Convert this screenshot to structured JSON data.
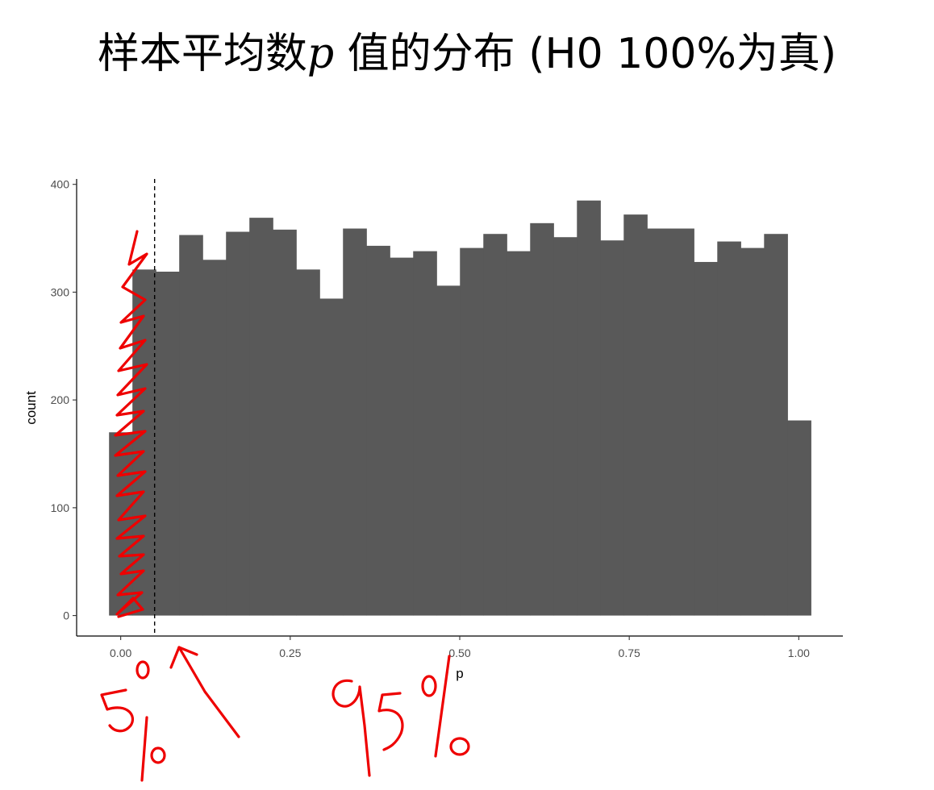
{
  "title": {
    "prefix": "样本平均数",
    "variable": "p",
    "suffix": " 值的分布 (H0 100%为真)"
  },
  "chart_data": {
    "type": "bar",
    "subtype": "histogram",
    "xlabel": "p",
    "ylabel": "count",
    "xlim": [
      -0.065,
      1.065
    ],
    "ylim": [
      -19,
      405
    ],
    "xticks": [
      0.0,
      0.25,
      0.5,
      0.75,
      1.0
    ],
    "xtick_labels": [
      "0.00",
      "0.25",
      "0.50",
      "0.75",
      "1.00"
    ],
    "yticks": [
      0,
      100,
      200,
      300,
      400
    ],
    "ytick_labels": [
      "0",
      "100",
      "200",
      "300",
      "400"
    ],
    "bin_width": 0.0345,
    "bin_start": -0.0172,
    "values": [
      170,
      321,
      319,
      353,
      330,
      356,
      369,
      358,
      321,
      294,
      359,
      343,
      332,
      338,
      306,
      341,
      354,
      338,
      364,
      351,
      385,
      348,
      372,
      359,
      359,
      328,
      347,
      341,
      354,
      181
    ],
    "bar_color": "#595959",
    "reference_line": {
      "x": 0.05,
      "style": "dashed",
      "color": "#000000"
    },
    "grid": false,
    "legend": "none",
    "annotations": {
      "left_label": "5%",
      "right_label": "95%",
      "color": "#ee0000"
    }
  }
}
